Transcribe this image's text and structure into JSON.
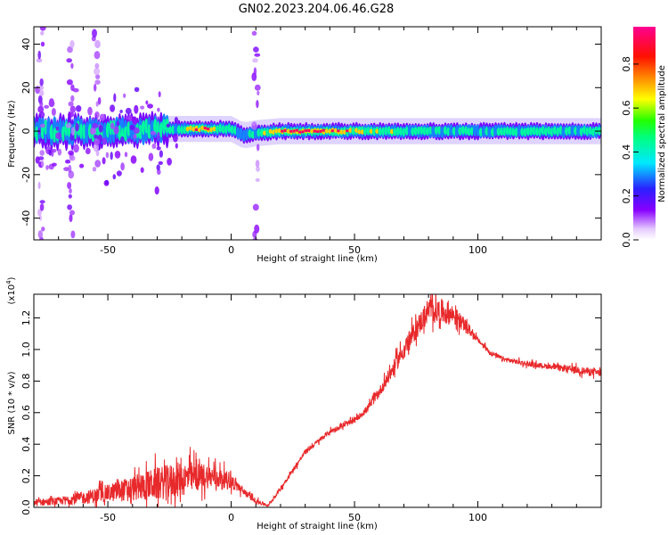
{
  "title": "GN02.2023.204.06.46.G28",
  "chart_data": [
    {
      "type": "heatmap",
      "xlabel": "Height of straight line (km)",
      "ylabel": "Frequency (Hz)",
      "xlim": [
        -80,
        150
      ],
      "ylim": [
        -50,
        48
      ],
      "xticks": [
        -50,
        0,
        50,
        100
      ],
      "yticks": [
        -40,
        -20,
        0,
        20,
        40
      ],
      "colorbar": {
        "label": "Normalized spectral amplitude",
        "range": [
          0,
          0.97
        ],
        "ticks": [
          "0.0",
          "0.2",
          "0.4",
          "0.6",
          "0.8"
        ],
        "colormap": "rainbow (white-purple-blue-cyan-green-yellow-orange-red-magenta)"
      },
      "ridge": {
        "description": "dominant frequency band centred near 0 Hz",
        "x": [
          -80,
          -60,
          -40,
          -30,
          -20,
          -10,
          0,
          5,
          10,
          20,
          40,
          60,
          80,
          100,
          120,
          150
        ],
        "center_hz": [
          0,
          0,
          0,
          1,
          1,
          1,
          1,
          -2,
          -1,
          0,
          0,
          0,
          0,
          0,
          0,
          0
        ],
        "peak_amplitude": [
          0.45,
          0.5,
          0.5,
          0.55,
          0.6,
          0.9,
          0.5,
          0.35,
          0.45,
          0.95,
          0.95,
          0.6,
          0.55,
          0.5,
          0.55,
          0.5
        ]
      },
      "noise_streaks": [
        {
          "x": 10,
          "freq_range": [
            -50,
            48
          ]
        },
        {
          "x": -77,
          "freq_range": [
            -50,
            48
          ]
        },
        {
          "x": -65,
          "freq_range": [
            -50,
            48
          ]
        },
        {
          "x": -55,
          "freq_range": [
            -20,
            48
          ]
        }
      ]
    },
    {
      "type": "line",
      "xlabel": "Height of straight line (km)",
      "ylabel": "SNR (10 * v/v)",
      "y_scale_label": "(x10",
      "y_scale_exponent": "4",
      "xlim": [
        -80,
        150
      ],
      "ylim": [
        0,
        1.35
      ],
      "xticks": [
        -50,
        0,
        50,
        100
      ],
      "yticks": [
        "0.0",
        "0.2",
        "0.4",
        "0.6",
        "0.8",
        "1.0",
        "1.2"
      ],
      "color": "#e8292b",
      "series": [
        {
          "x": [
            -80,
            -70,
            -60,
            -50,
            -40,
            -30,
            -20,
            -10,
            0,
            5,
            10,
            15,
            20,
            30,
            40,
            50,
            55,
            60,
            65,
            70,
            75,
            80,
            85,
            90,
            95,
            100,
            105,
            110,
            120,
            130,
            140,
            150
          ],
          "y": [
            0.03,
            0.04,
            0.06,
            0.09,
            0.12,
            0.15,
            0.18,
            0.2,
            0.17,
            0.1,
            0.04,
            0.01,
            0.12,
            0.35,
            0.48,
            0.55,
            0.62,
            0.73,
            0.86,
            1.0,
            1.13,
            1.25,
            1.24,
            1.22,
            1.15,
            1.06,
            0.98,
            0.94,
            0.91,
            0.89,
            0.87,
            0.85
          ],
          "noise_amplitude": [
            0.03,
            0.03,
            0.05,
            0.07,
            0.1,
            0.13,
            0.14,
            0.1,
            0.06,
            0.03,
            0.02,
            0.01,
            0.02,
            0.02,
            0.02,
            0.02,
            0.03,
            0.04,
            0.06,
            0.07,
            0.08,
            0.1,
            0.1,
            0.08,
            0.05,
            0.02,
            0.02,
            0.02,
            0.02,
            0.02,
            0.03,
            0.03
          ]
        }
      ]
    }
  ]
}
